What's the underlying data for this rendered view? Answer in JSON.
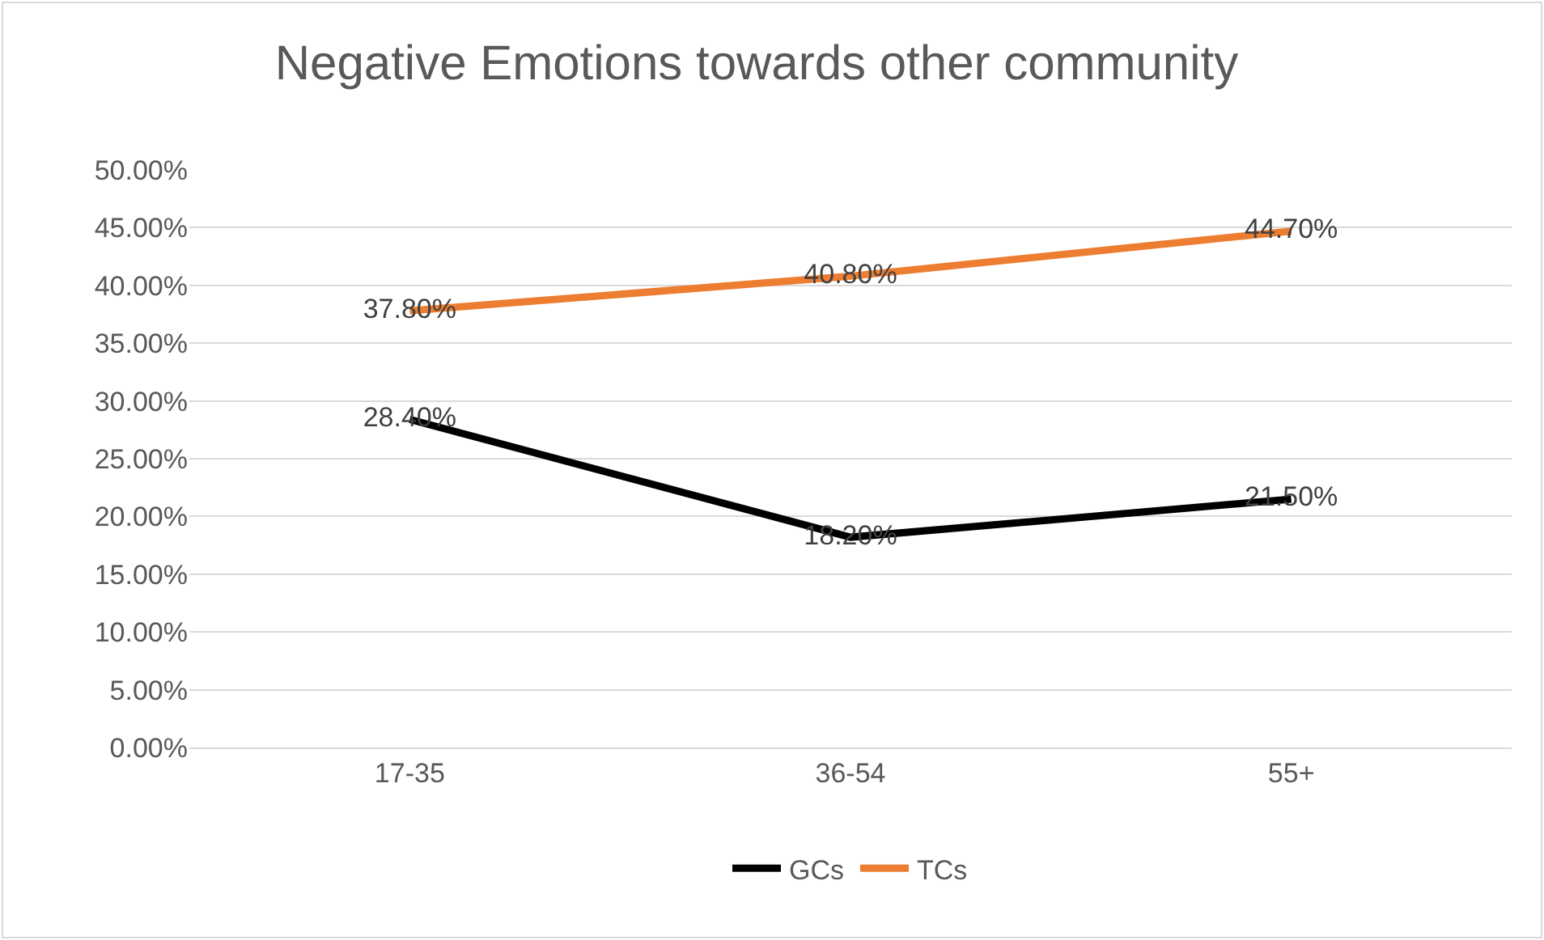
{
  "chart_data": {
    "type": "line",
    "title": "Negative Emotions towards other community",
    "categories": [
      "17-35",
      "36-54",
      "55+"
    ],
    "series": [
      {
        "name": "GCs",
        "color": "#000000",
        "values": [
          28.4,
          18.2,
          21.5
        ],
        "value_labels": [
          "28.40%",
          "18.20%",
          "21.50%"
        ]
      },
      {
        "name": "TCs",
        "color": "#ed7d31",
        "values": [
          37.8,
          40.8,
          44.7
        ],
        "value_labels": [
          "37.80%",
          "40.80%",
          "44.70%"
        ]
      }
    ],
    "ylim": [
      0,
      50
    ],
    "yticks": [
      {
        "value": 0,
        "label": "0.00%"
      },
      {
        "value": 5,
        "label": "5.00%"
      },
      {
        "value": 10,
        "label": "10.00%"
      },
      {
        "value": 15,
        "label": "15.00%"
      },
      {
        "value": 20,
        "label": "20.00%"
      },
      {
        "value": 25,
        "label": "25.00%"
      },
      {
        "value": 30,
        "label": "30.00%"
      },
      {
        "value": 35,
        "label": "35.00%"
      },
      {
        "value": 40,
        "label": "40.00%"
      },
      {
        "value": 45,
        "label": "45.00%"
      },
      {
        "value": 50,
        "label": "50.00%"
      }
    ],
    "grid": "y",
    "legend": "bottom",
    "marker": "none",
    "line_style": "solid"
  }
}
